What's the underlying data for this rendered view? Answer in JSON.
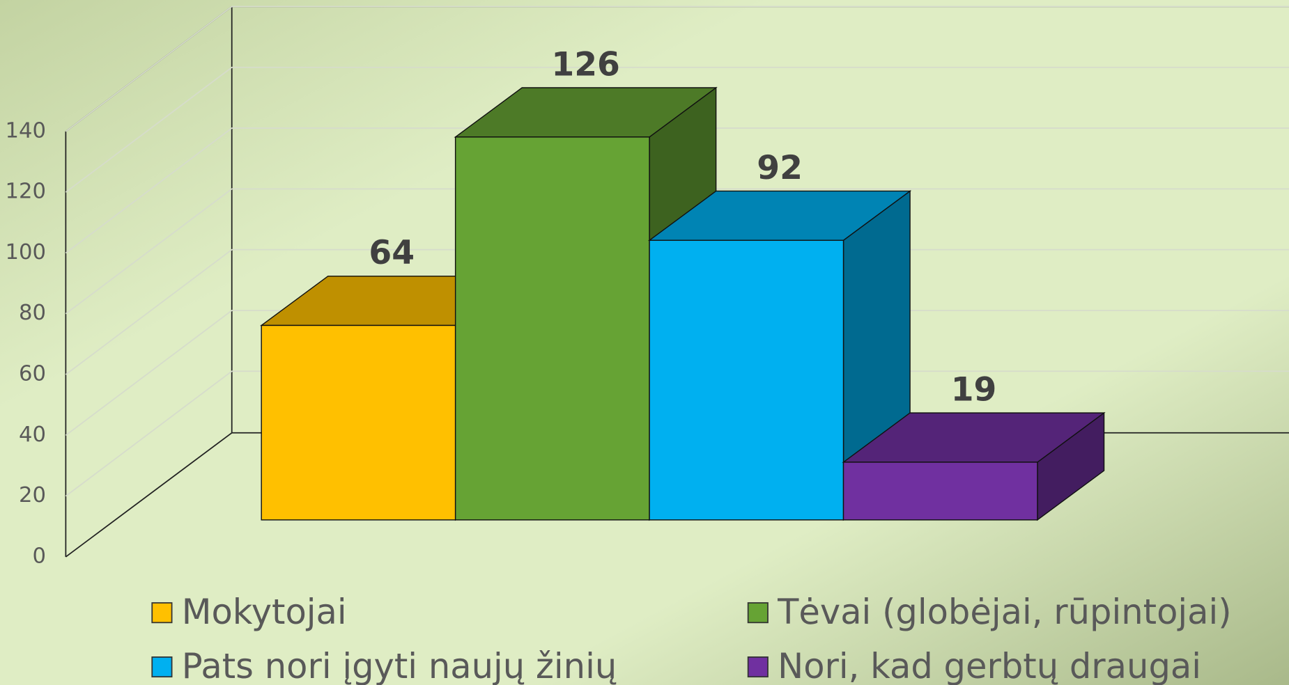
{
  "chart_data": {
    "type": "bar",
    "series": [
      {
        "name": "Mokytojai",
        "color": "#ffc000",
        "values": [
          64
        ]
      },
      {
        "name": "Tėvai (globėjai, rūpintojai)",
        "color": "#66a334",
        "values": [
          126
        ]
      },
      {
        "name": "Pats nori įgyti naujų žinių",
        "color": "#00b0f0",
        "values": [
          92
        ]
      },
      {
        "name": "Nori, kad gerbtų draugai",
        "color": "#7030a0",
        "values": [
          19
        ]
      }
    ],
    "ylim": [
      0,
      140
    ],
    "yticks": [
      0,
      20,
      40,
      60,
      80,
      100,
      120,
      140
    ],
    "grid": true,
    "legend": "bottom"
  }
}
